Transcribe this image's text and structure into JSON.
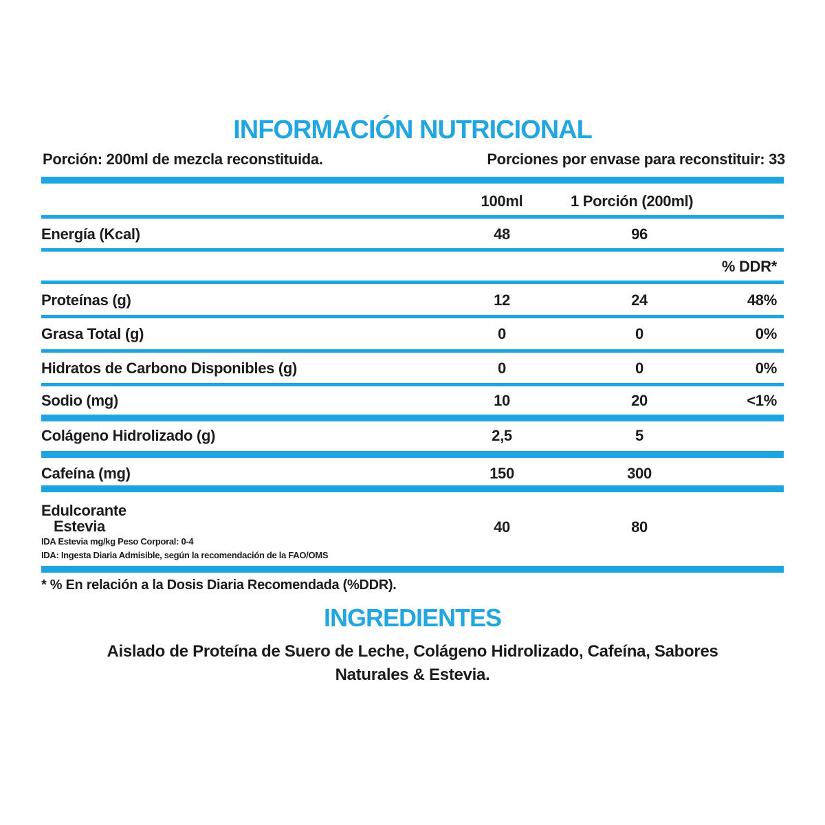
{
  "title": "INFORMACIÓN NUTRICIONAL",
  "serving": "Porción: 200ml de mezcla reconstituida.",
  "servings_per_container": "Porciones por envase para reconstituir: 33",
  "columns": {
    "per_100ml": "100ml",
    "per_portion": "1 Porción (200ml)",
    "ddr": "% DDR*"
  },
  "rows": [
    {
      "name": "Energía (Kcal)",
      "per_100ml": "48",
      "per_portion": "96",
      "ddr": ""
    },
    {
      "name": "Proteínas (g)",
      "per_100ml": "12",
      "per_portion": "24",
      "ddr": "48%"
    },
    {
      "name": "Grasa Total (g)",
      "per_100ml": "0",
      "per_portion": "0",
      "ddr": "0%"
    },
    {
      "name": "Hidratos de Carbono Disponibles (g)",
      "per_100ml": "0",
      "per_portion": "0",
      "ddr": "0%"
    },
    {
      "name": "Sodio (mg)",
      "per_100ml": "10",
      "per_portion": "20",
      "ddr": "<1%"
    },
    {
      "name": "Colágeno Hidrolizado (g)",
      "per_100ml": "2,5",
      "per_portion": "5",
      "ddr": ""
    },
    {
      "name": "Cafeína (mg)",
      "per_100ml": "150",
      "per_portion": "300",
      "ddr": ""
    }
  ],
  "sweetener": {
    "label_line1": "Edulcorante",
    "label_line2": "Estevia",
    "per_100ml": "40",
    "per_portion": "80",
    "note1": "IDA Estevia mg/kg Peso Corporal: 0-4",
    "note2": "IDA: Ingesta Diaria Admisible, según la recomendación de la FAO/OMS"
  },
  "footnote": "* % En relación a la Dosis Diaria Recomendada (%DDR).",
  "ingredients_title": "INGREDIENTES",
  "ingredients_line1": "Aislado de Proteína de Suero de Leche, Colágeno Hidrolizado, Cafeína, Sabores",
  "ingredients_line2": "Naturales & Estevia.",
  "colors": {
    "accent": "#1ea4de",
    "text": "#1c1c1c"
  }
}
